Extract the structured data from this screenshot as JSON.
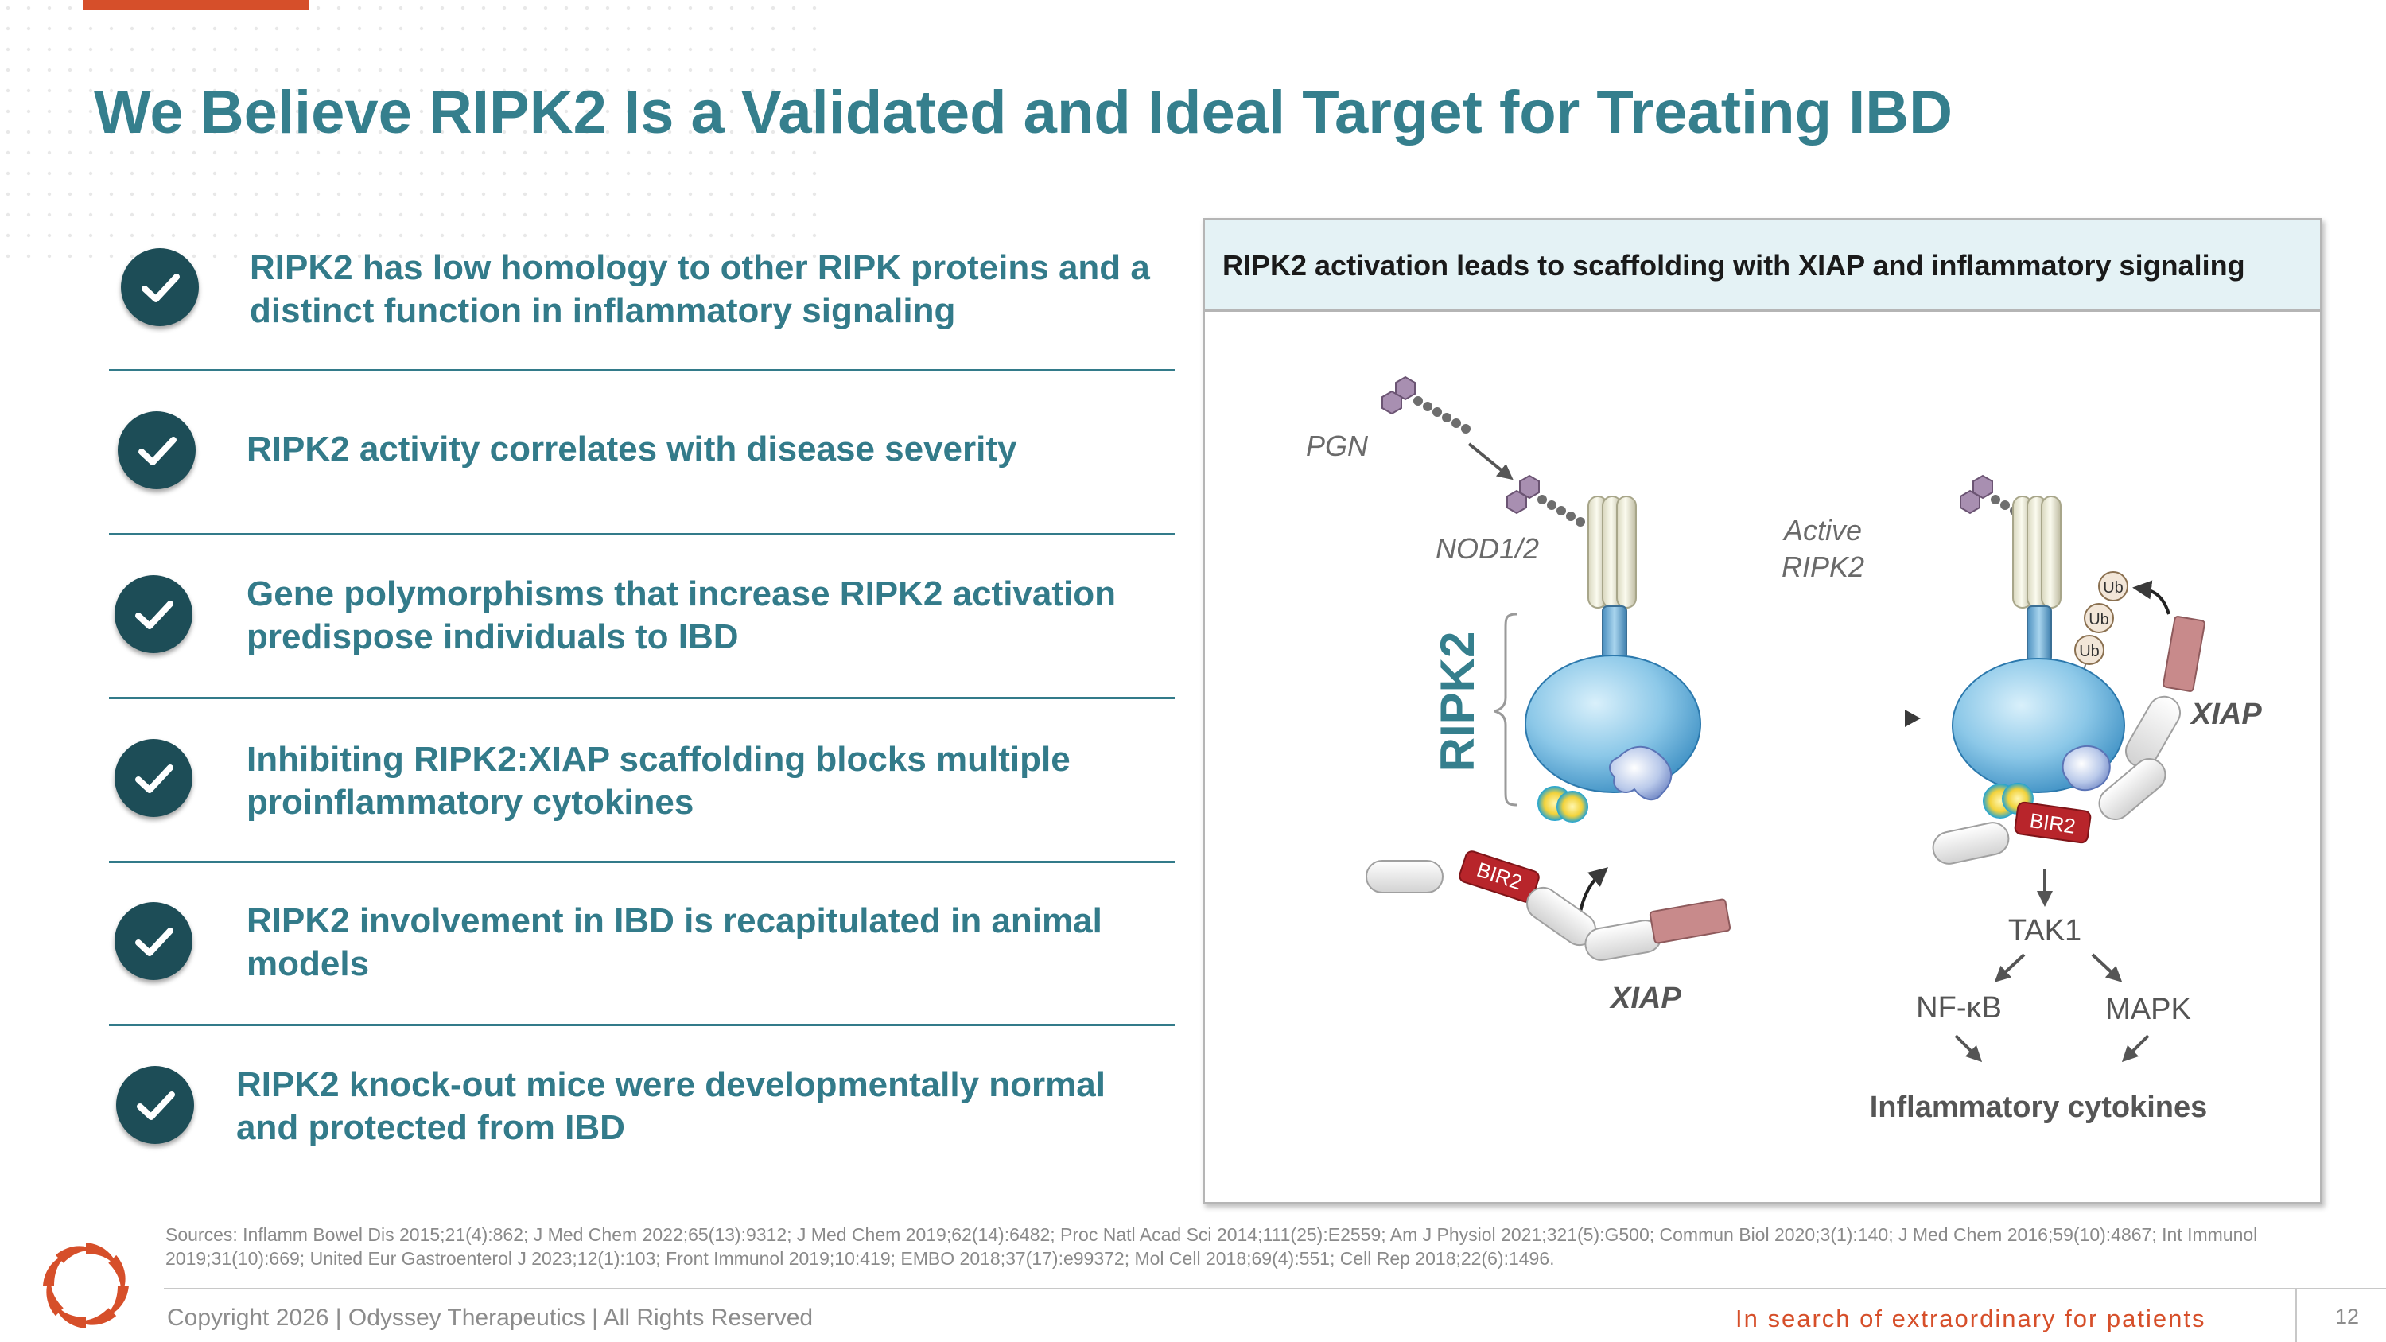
{
  "colors": {
    "title": "#357f8d",
    "text": "#337b8a",
    "accent": "#d64f2a",
    "check": "#1d4d57",
    "panel_header_bg": "#e4f2f5",
    "dark": "#444444"
  },
  "title": "We Believe RIPK2 Is a Validated and Ideal Target for Treating IBD",
  "bullets": [
    "RIPK2 has low homology to other RIPK proteins and a distinct function in inflammatory signaling",
    "RIPK2 activity correlates with disease severity",
    "Gene polymorphisms that increase RIPK2 activation predispose individuals to IBD",
    "Inhibiting RIPK2:XIAP scaffolding blocks multiple proinflammatory cytokines",
    "RIPK2 involvement in IBD is recapitulated in animal models",
    "RIPK2 knock-out mice were developmentally normal and protected from IBD"
  ],
  "panel": {
    "title": "RIPK2 activation leads to scaffolding with XIAP and inflammatory signaling",
    "labels": {
      "pgn": "PGN",
      "nod": "NOD1/2",
      "ripk2": "RIPK2",
      "active_line1": "Active",
      "active_line2": "RIPK2",
      "xiap_left": "XIAP",
      "xiap_right": "XIAP",
      "bir2_left": "BIR2",
      "bir2_right": "BIR2",
      "ub1": "Ub",
      "ub2": "Ub",
      "ub3": "Ub",
      "tak1": "TAK1",
      "nfkb": "NF-κB",
      "mapk": "MAPK",
      "cytokines": "Inflammatory cytokines"
    }
  },
  "sources": "Sources: Inflamm Bowel Dis 2015;21(4):862; J Med Chem 2022;65(13):9312; J Med Chem 2019;62(14):6482; Proc Natl Acad Sci 2014;111(25):E2559; Am J Physiol 2021;321(5):G500; Commun Biol 2020;3(1):140; J Med Chem 2016;59(10):4867; Int Immunol 2019;31(10):669; United Eur Gastroenterol J 2023;12(1):103; Front Immunol 2019;10:419; EMBO 2018;37(17):e99372; Mol Cell 2018;69(4):551; Cell Rep 2018;22(6):1496.",
  "footer": {
    "copyright": "Copyright 2026  |  Odyssey Therapeutics  |  All Rights Reserved",
    "tagline": "In search of extraordinary for patients",
    "page": "12"
  }
}
